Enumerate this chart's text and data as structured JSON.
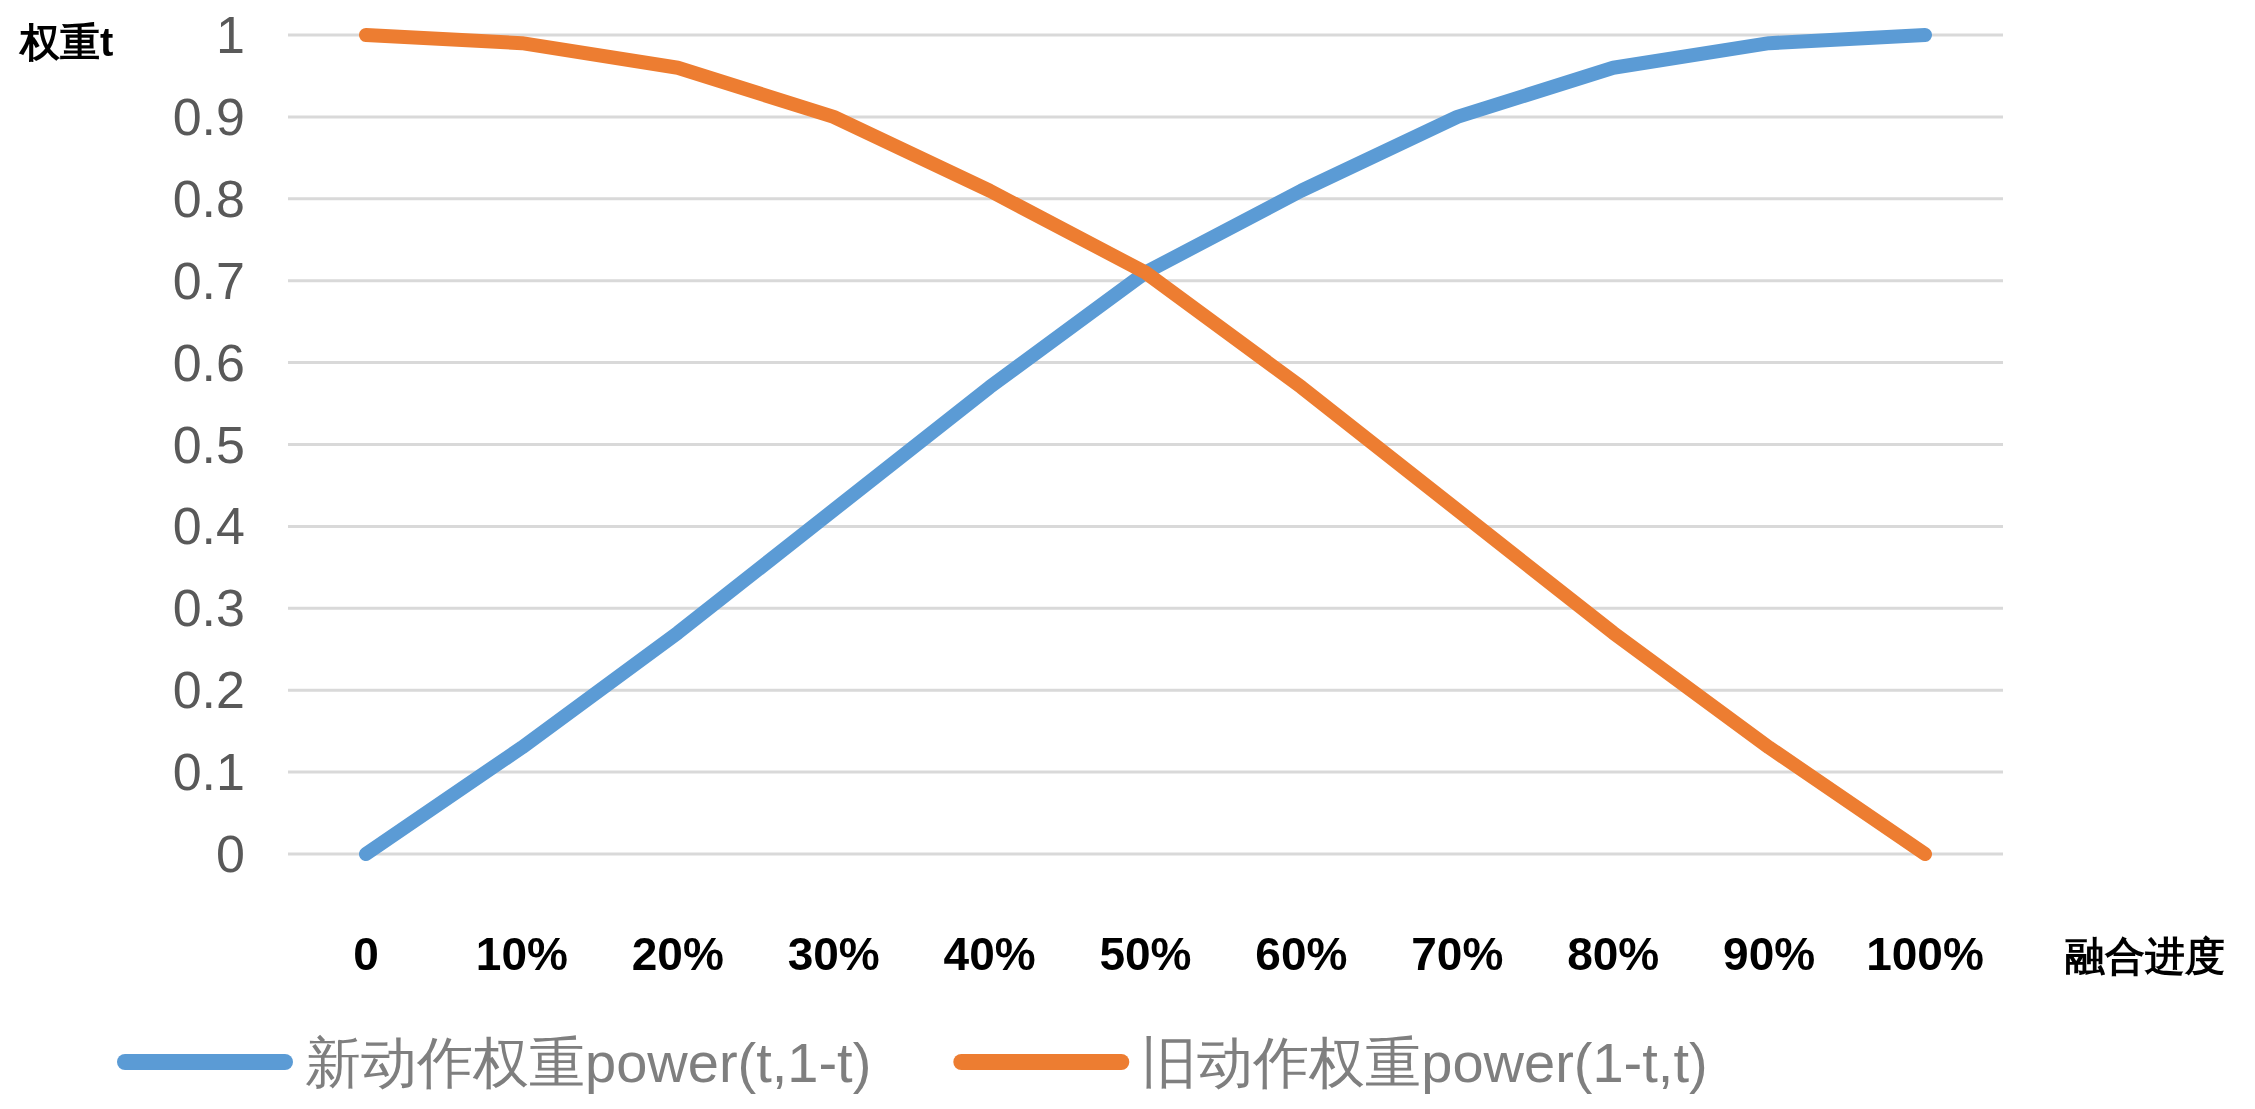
{
  "chart_data": {
    "type": "line",
    "ylabel": "权重t",
    "xlabel": "融合进度",
    "categories": [
      "0",
      "10%",
      "20%",
      "30%",
      "40%",
      "50%",
      "60%",
      "70%",
      "80%",
      "90%",
      "100%"
    ],
    "series": [
      {
        "name": "新动作权重power(t,1-t)",
        "color": "#5b9bd5",
        "values": [
          0,
          0.13,
          0.27,
          0.42,
          0.57,
          0.71,
          0.81,
          0.9,
          0.96,
          0.99,
          1
        ]
      },
      {
        "name": "旧动作权重power(1-t,t)",
        "color": "#ed7d31",
        "values": [
          1,
          0.99,
          0.96,
          0.9,
          0.81,
          0.71,
          0.57,
          0.42,
          0.27,
          0.13,
          0
        ]
      }
    ],
    "ylim": [
      0,
      1
    ],
    "yticks": [
      0,
      0.1,
      0.2,
      0.3,
      0.4,
      0.5,
      0.6,
      0.7,
      0.8,
      0.9,
      1
    ],
    "grid": "y",
    "legend": "bottom"
  }
}
